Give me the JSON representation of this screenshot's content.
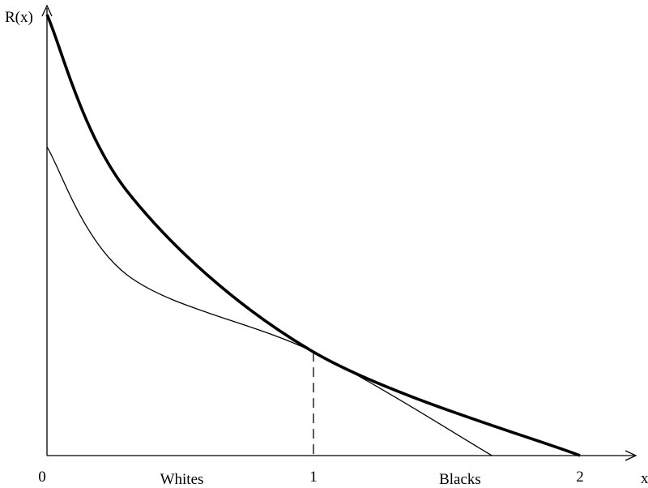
{
  "chart_data": {
    "type": "line",
    "ylabel": "R(x)",
    "xlabel": "x",
    "xlim": [
      0,
      2
    ],
    "x_ticks": [
      {
        "value": 0,
        "label": "0"
      },
      {
        "value": 1,
        "label": "1"
      },
      {
        "value": 2,
        "label": "2"
      }
    ],
    "region_labels": [
      {
        "text": "Whites",
        "x": 0.5
      },
      {
        "text": "Blacks",
        "x": 1.55
      }
    ],
    "series": [
      {
        "style": "thick",
        "points": [
          [
            0,
            1.0
          ],
          [
            0.3,
            0.6
          ],
          [
            1.0,
            0.235
          ],
          [
            2.0,
            0.0
          ]
        ]
      },
      {
        "style": "thin",
        "points": [
          [
            0,
            0.7
          ],
          [
            0.3,
            0.41
          ],
          [
            1.0,
            0.235
          ],
          [
            1.67,
            0.0
          ]
        ]
      }
    ],
    "reference_line": {
      "style": "dashed",
      "x": 1.0,
      "y": 0.235
    },
    "grid": false,
    "legend": "none"
  }
}
